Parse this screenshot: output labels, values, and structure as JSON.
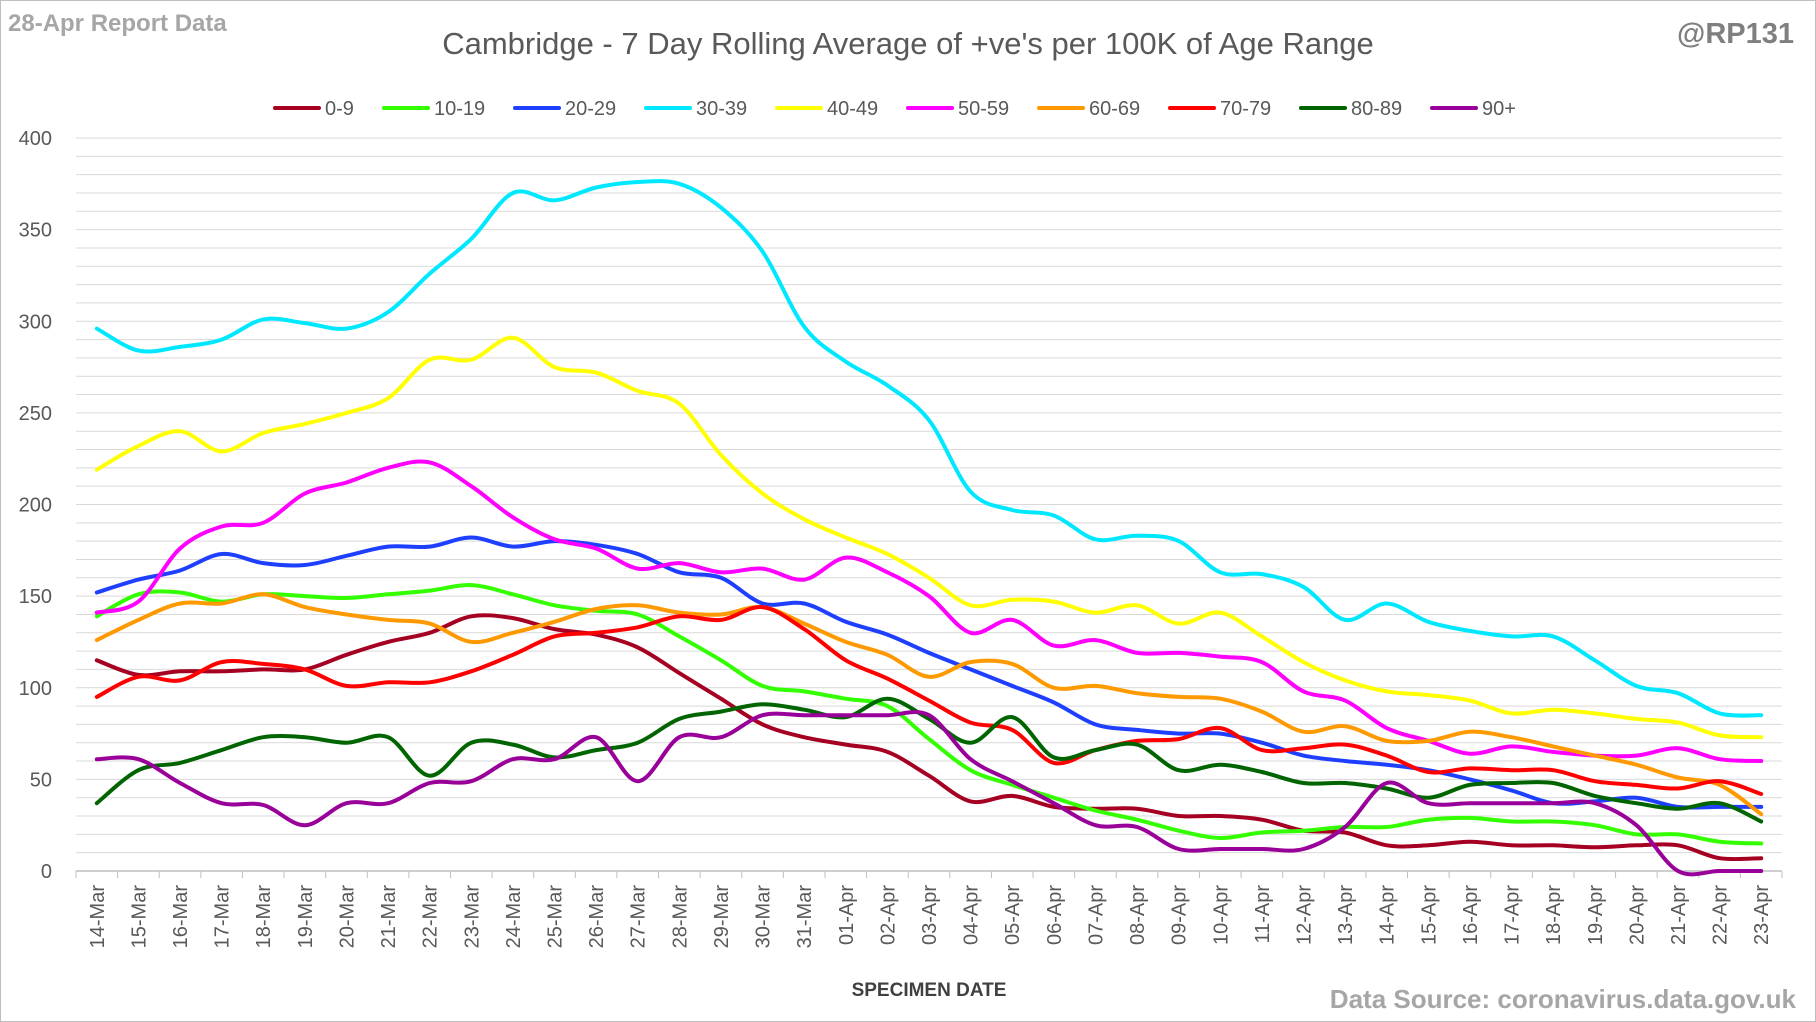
{
  "header": {
    "report_label": "28-Apr Report Data",
    "handle": "@RP131",
    "source": "Data Source: coronavirus.data.gov.uk"
  },
  "chart_data": {
    "type": "line",
    "title": "Cambridge - 7 Day Rolling Average of +ve's per 100K of Age Range",
    "xlabel": "SPECIMEN DATE",
    "ylabel": "",
    "ylim": [
      0,
      400
    ],
    "yticks": [
      0,
      50,
      100,
      150,
      200,
      250,
      300,
      350,
      400
    ],
    "grid": true,
    "legend_position": "top",
    "categories": [
      "14-Mar",
      "15-Mar",
      "16-Mar",
      "17-Mar",
      "18-Mar",
      "19-Mar",
      "20-Mar",
      "21-Mar",
      "22-Mar",
      "23-Mar",
      "24-Mar",
      "25-Mar",
      "26-Mar",
      "27-Mar",
      "28-Mar",
      "29-Mar",
      "30-Mar",
      "31-Mar",
      "01-Apr",
      "02-Apr",
      "03-Apr",
      "04-Apr",
      "05-Apr",
      "06-Apr",
      "07-Apr",
      "08-Apr",
      "09-Apr",
      "10-Apr",
      "11-Apr",
      "12-Apr",
      "13-Apr",
      "14-Apr",
      "15-Apr",
      "16-Apr",
      "17-Apr",
      "18-Apr",
      "19-Apr",
      "20-Apr",
      "21-Apr",
      "22-Apr",
      "23-Apr"
    ],
    "series": [
      {
        "name": "0-9",
        "color": "#a50021",
        "values": [
          115,
          107,
          109,
          109,
          110,
          110,
          118,
          125,
          130,
          139,
          138,
          132,
          129,
          122,
          108,
          94,
          80,
          73,
          69,
          65,
          52,
          38,
          41,
          35,
          34,
          34,
          30,
          30,
          28,
          22,
          21,
          14,
          14,
          16,
          14,
          14,
          13,
          14,
          14,
          7,
          7
        ]
      },
      {
        "name": "10-19",
        "color": "#33ff00",
        "values": [
          139,
          151,
          152,
          147,
          151,
          150,
          149,
          151,
          153,
          156,
          151,
          145,
          142,
          140,
          128,
          115,
          101,
          98,
          94,
          90,
          72,
          55,
          47,
          40,
          33,
          28,
          22,
          18,
          21,
          22,
          24,
          24,
          28,
          29,
          27,
          27,
          25,
          20,
          20,
          16,
          15
        ]
      },
      {
        "name": "20-29",
        "color": "#1f3fff",
        "values": [
          152,
          159,
          164,
          173,
          168,
          167,
          172,
          177,
          177,
          182,
          177,
          180,
          178,
          173,
          163,
          160,
          146,
          146,
          136,
          129,
          119,
          110,
          101,
          92,
          80,
          77,
          75,
          75,
          70,
          63,
          60,
          58,
          55,
          50,
          44,
          37,
          38,
          40,
          35,
          35,
          35
        ]
      },
      {
        "name": "30-39",
        "color": "#00e8ff",
        "values": [
          296,
          284,
          286,
          290,
          301,
          299,
          296,
          305,
          326,
          345,
          370,
          366,
          373,
          376,
          375,
          362,
          338,
          297,
          278,
          265,
          246,
          207,
          197,
          194,
          181,
          183,
          180,
          163,
          162,
          155,
          137,
          146,
          136,
          131,
          128,
          128,
          115,
          101,
          97,
          86,
          85
        ]
      },
      {
        "name": "40-49",
        "color": "#ffff00",
        "values": [
          219,
          232,
          240,
          229,
          239,
          244,
          250,
          258,
          279,
          279,
          291,
          275,
          272,
          262,
          255,
          227,
          206,
          192,
          182,
          173,
          160,
          145,
          148,
          147,
          141,
          145,
          135,
          141,
          128,
          114,
          104,
          98,
          96,
          93,
          86,
          88,
          86,
          83,
          81,
          74,
          73
        ]
      },
      {
        "name": "50-59",
        "color": "#ff00ff",
        "values": [
          141,
          147,
          176,
          188,
          190,
          206,
          212,
          220,
          223,
          210,
          193,
          181,
          176,
          165,
          168,
          163,
          165,
          159,
          171,
          163,
          150,
          130,
          137,
          123,
          126,
          119,
          119,
          117,
          114,
          98,
          93,
          78,
          71,
          64,
          68,
          65,
          63,
          63,
          67,
          61,
          60
        ]
      },
      {
        "name": "60-69",
        "color": "#ff9900",
        "values": [
          126,
          137,
          146,
          146,
          151,
          144,
          140,
          137,
          135,
          125,
          130,
          136,
          143,
          145,
          141,
          140,
          144,
          135,
          125,
          118,
          106,
          114,
          113,
          100,
          101,
          97,
          95,
          94,
          87,
          76,
          79,
          71,
          71,
          76,
          73,
          68,
          63,
          58,
          51,
          47,
          31
        ]
      },
      {
        "name": "70-79",
        "color": "#ff0000",
        "values": [
          95,
          106,
          104,
          114,
          113,
          110,
          101,
          103,
          103,
          109,
          118,
          128,
          130,
          133,
          139,
          137,
          144,
          132,
          115,
          105,
          93,
          81,
          77,
          59,
          66,
          71,
          72,
          78,
          66,
          67,
          69,
          63,
          54,
          56,
          55,
          55,
          49,
          47,
          45,
          49,
          42
        ]
      },
      {
        "name": "80-89",
        "color": "#006400",
        "values": [
          37,
          55,
          59,
          66,
          73,
          73,
          70,
          73,
          52,
          70,
          69,
          62,
          66,
          70,
          83,
          87,
          91,
          88,
          84,
          94,
          83,
          70,
          84,
          62,
          66,
          69,
          55,
          58,
          54,
          48,
          48,
          45,
          40,
          47,
          48,
          48,
          41,
          37,
          34,
          37,
          27
        ]
      },
      {
        "name": "90+",
        "color": "#990099",
        "values": [
          61,
          61,
          48,
          37,
          36,
          25,
          37,
          37,
          48,
          49,
          61,
          61,
          73,
          49,
          73,
          73,
          85,
          85,
          85,
          85,
          85,
          61,
          49,
          37,
          25,
          24,
          12,
          12,
          12,
          12,
          24,
          48,
          37,
          37,
          37,
          37,
          37,
          25,
          0,
          0,
          0
        ]
      }
    ]
  }
}
